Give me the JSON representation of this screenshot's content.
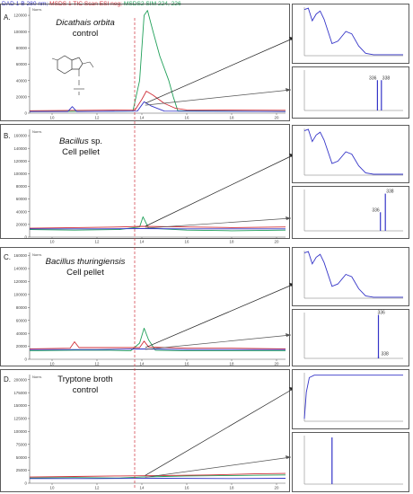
{
  "legend": {
    "dad": "DAD 1 B 280 nm;",
    "msd1": " MSDS 1 TIC Scan ESI neg;",
    "msd2": " MSDS2 SIM 224, 226",
    "colors": {
      "dad": "#3535c8",
      "tic": "#d0303a",
      "sim": "#21a05a"
    }
  },
  "panels": [
    {
      "letter": "A.",
      "name": "Dicathais orbita",
      "name2": "control",
      "italic_line1": true
    },
    {
      "letter": "B.",
      "name": "Bacillus",
      "name_suffix": " sp.",
      "name2": "Cell pellet",
      "italic_line1": true
    },
    {
      "letter": "C.",
      "name": "Bacillus thuringiensis",
      "name2": "Cell pellet",
      "italic_line1": true
    },
    {
      "letter": "D.",
      "name": "Tryptone broth",
      "name2": "control",
      "italic_line1": false
    }
  ],
  "ms_labels": {
    "A": [
      "336",
      "338"
    ],
    "B": [
      "336",
      "338"
    ],
    "C": [
      "336",
      "338"
    ]
  },
  "chart_data": [
    {
      "type": "line",
      "panel": "A",
      "ylim": [
        0,
        130000
      ],
      "yticks": [
        "120000",
        "100000",
        "80000",
        "60000",
        "40000",
        "20000",
        "0"
      ],
      "xticks": [
        "10",
        "12",
        "14",
        "16",
        "18",
        "20"
      ],
      "xlim": [
        9,
        20.4
      ],
      "y_unit": "Norm.",
      "series": [
        {
          "color": "sim",
          "x": [
            9,
            13.6,
            13.9,
            14.1,
            14.25,
            14.5,
            14.8,
            15.2,
            15.4,
            15.6,
            20.4
          ],
          "y": [
            2000,
            2500,
            40000,
            120000,
            126000,
            100000,
            70000,
            40000,
            20000,
            3000,
            2000
          ]
        },
        {
          "color": "tic",
          "x": [
            9,
            13.7,
            14.0,
            14.2,
            14.5,
            15.0,
            15.5,
            16.0,
            20.4
          ],
          "y": [
            3000,
            4000,
            17000,
            27000,
            22000,
            12000,
            6000,
            4000,
            3500
          ]
        },
        {
          "color": "dad",
          "x": [
            9,
            10.7,
            10.9,
            11.1,
            13.8,
            14.1,
            14.4,
            15.0,
            20.4
          ],
          "y": [
            2000,
            2000,
            8000,
            2000,
            2500,
            14000,
            9000,
            2500,
            2000
          ]
        }
      ]
    },
    {
      "type": "line",
      "panel": "B",
      "ylim": [
        0,
        170000
      ],
      "yticks": [
        "160000",
        "140000",
        "120000",
        "100000",
        "80000",
        "60000",
        "40000",
        "20000",
        "0"
      ],
      "xticks": [
        "10",
        "12",
        "14",
        "16",
        "18",
        "20"
      ],
      "xlim": [
        9,
        20.4
      ],
      "y_unit": "Norm.",
      "series": [
        {
          "color": "sim",
          "x": [
            9,
            11,
            13,
            13.9,
            14.05,
            14.3,
            16,
            18,
            20.4
          ],
          "y": [
            12000,
            11000,
            12000,
            16000,
            32000,
            14000,
            11000,
            10000,
            11000
          ]
        },
        {
          "color": "tic",
          "x": [
            9,
            11,
            13,
            14,
            16,
            18,
            20.4
          ],
          "y": [
            14000,
            15000,
            16000,
            17000,
            16000,
            15000,
            16000
          ]
        },
        {
          "color": "dad",
          "x": [
            9,
            12,
            14,
            16,
            20.4
          ],
          "y": [
            13000,
            13000,
            13500,
            13000,
            13000
          ]
        }
      ]
    },
    {
      "type": "line",
      "panel": "C",
      "ylim": [
        0,
        165000
      ],
      "yticks": [
        "160000",
        "140000",
        "120000",
        "100000",
        "80000",
        "60000",
        "40000",
        "20000",
        "0"
      ],
      "xticks": [
        "10",
        "12",
        "14",
        "16",
        "18",
        "20"
      ],
      "xlim": [
        9,
        20.4
      ],
      "y_unit": "Norm.",
      "series": [
        {
          "color": "sim",
          "x": [
            9,
            11,
            12.6,
            13.5,
            13.9,
            14.1,
            14.3,
            14.6,
            16,
            18,
            20.4
          ],
          "y": [
            13000,
            14000,
            14000,
            13000,
            25000,
            48000,
            30000,
            14000,
            13000,
            13000,
            13000
          ]
        },
        {
          "color": "tic",
          "x": [
            9,
            10.8,
            11.0,
            11.2,
            13.9,
            14.1,
            14.3,
            16,
            18,
            20.4
          ],
          "y": [
            16000,
            17000,
            27000,
            18000,
            18000,
            28000,
            19000,
            17000,
            17000,
            16000
          ]
        },
        {
          "color": "dad",
          "x": [
            9,
            12,
            14,
            16,
            20.4
          ],
          "y": [
            15000,
            15000,
            16000,
            15000,
            15000
          ]
        }
      ]
    },
    {
      "type": "line",
      "panel": "D",
      "ylim": [
        0,
        210000
      ],
      "yticks": [
        "200000",
        "175000",
        "150000",
        "125000",
        "100000",
        "75000",
        "50000",
        "25000",
        "0"
      ],
      "xticks": [
        "10",
        "12",
        "14",
        "16",
        "18",
        "20"
      ],
      "xlim": [
        9,
        20.4
      ],
      "y_unit": "Norm.",
      "series": [
        {
          "color": "sim",
          "x": [
            9,
            11,
            13,
            14,
            15,
            16,
            18,
            20.4
          ],
          "y": [
            10000,
            11000,
            10000,
            12000,
            13000,
            14000,
            15000,
            16000
          ]
        },
        {
          "color": "tic",
          "x": [
            9,
            11,
            13,
            15,
            17,
            19,
            20.4
          ],
          "y": [
            12000,
            13000,
            14000,
            15000,
            16000,
            18000,
            19000
          ]
        },
        {
          "color": "dad",
          "x": [
            9,
            12,
            15,
            18,
            20.4
          ],
          "y": [
            9000,
            9000,
            9500,
            9000,
            9500
          ]
        }
      ]
    }
  ]
}
